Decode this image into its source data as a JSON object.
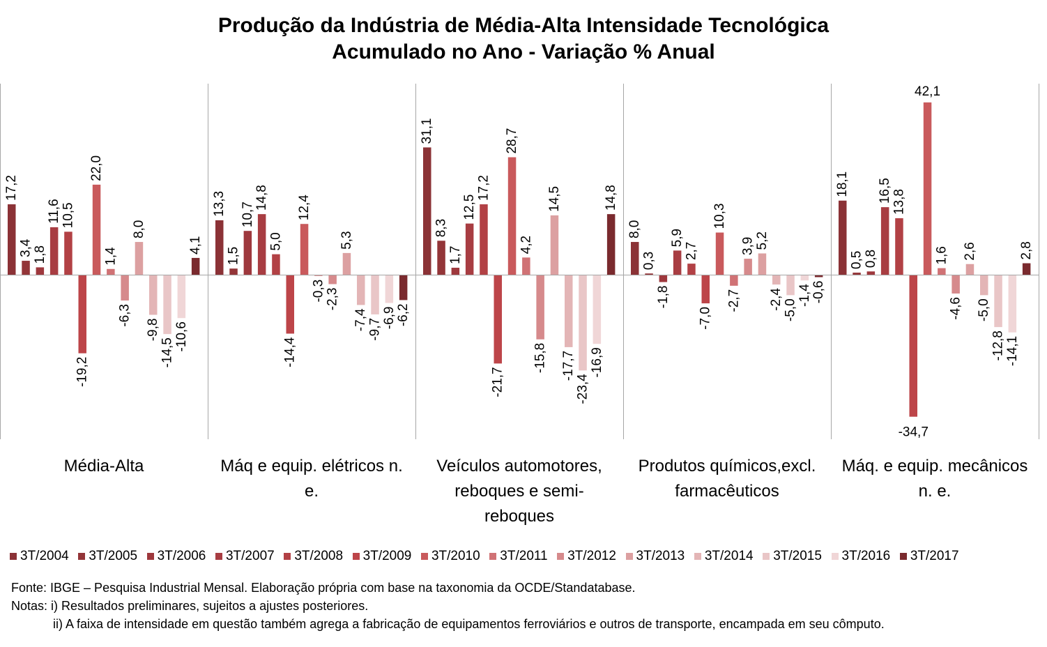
{
  "title_line1": "Produção da Indústria de Média-Alta Intensidade Tecnológica",
  "title_line2": "Acumulado no Ano - Variação % Anual",
  "chart_data": {
    "type": "bar",
    "categories": [
      "Média-Alta",
      "Máq e equip. elétricos n. e.",
      "Veículos automotores, reboques e semi-reboques",
      "Produtos químicos,excl. farmacêuticos",
      "Máq. e equip. mecânicos n. e."
    ],
    "series": [
      {
        "name": "3T/2004",
        "color": "#8b3236",
        "values": [
          17.2,
          13.3,
          31.1,
          8.0,
          18.1
        ]
      },
      {
        "name": "3T/2005",
        "color": "#933538",
        "values": [
          3.4,
          1.5,
          8.3,
          0.3,
          0.5
        ]
      },
      {
        "name": "3T/2006",
        "color": "#9e383d",
        "values": [
          1.8,
          10.7,
          1.7,
          -1.8,
          0.8
        ]
      },
      {
        "name": "3T/2007",
        "color": "#a83d42",
        "values": [
          11.6,
          14.8,
          12.5,
          5.9,
          16.5
        ]
      },
      {
        "name": "3T/2008",
        "color": "#b24145",
        "values": [
          10.5,
          5.0,
          17.2,
          2.7,
          13.8
        ]
      },
      {
        "name": "3T/2009",
        "color": "#bd4549",
        "values": [
          -19.2,
          -14.4,
          -21.7,
          -7.0,
          -34.7
        ]
      },
      {
        "name": "3T/2010",
        "color": "#c95a5c",
        "values": [
          22.0,
          12.4,
          28.7,
          10.3,
          42.1
        ]
      },
      {
        "name": "3T/2011",
        "color": "#d07275",
        "values": [
          1.4,
          -0.3,
          4.2,
          -2.7,
          1.6
        ]
      },
      {
        "name": "3T/2012",
        "color": "#d68a8c",
        "values": [
          -6.3,
          -2.3,
          -15.8,
          3.9,
          -4.6
        ]
      },
      {
        "name": "3T/2013",
        "color": "#dca0a1",
        "values": [
          8.0,
          5.3,
          14.5,
          5.2,
          2.6
        ]
      },
      {
        "name": "3T/2014",
        "color": "#e3b5b6",
        "values": [
          -9.8,
          -7.4,
          -17.7,
          -2.4,
          -5.0
        ]
      },
      {
        "name": "3T/2015",
        "color": "#e9c6c7",
        "values": [
          -14.5,
          -9.7,
          -23.4,
          -5.0,
          -12.8
        ]
      },
      {
        "name": "3T/2016",
        "color": "#f0d6d7",
        "values": [
          -10.6,
          -6.9,
          -16.9,
          -1.4,
          -14.1
        ]
      },
      {
        "name": "3T/2017",
        "color": "#7a2a2e",
        "values": [
          4.1,
          -6.2,
          14.8,
          -0.6,
          2.8
        ]
      }
    ],
    "ylim": [
      -40,
      47
    ],
    "grid": false,
    "legend_position": "bottom"
  },
  "notes": {
    "source": "Fonte: IBGE – Pesquisa Industrial Mensal. Elaboração própria com base na taxonomia da OCDE/Standatabase.",
    "note1": "Notas: i) Resultados preliminares, sujeitos a ajustes posteriores.",
    "note2": "ii) A faixa de intensidade em questão também agrega a fabricação de equipamentos ferroviários e outros de transporte, encampada em seu cômputo."
  }
}
